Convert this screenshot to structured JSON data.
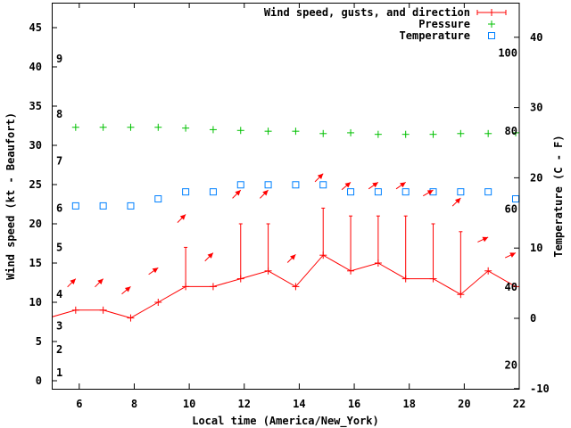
{
  "chart_data": {
    "type": "line",
    "xlabel": "Local time (America/New_York)",
    "ylabel": "Wind speed (kt - Beaufort)",
    "y2label": "Temperature (C - F)",
    "xlim": [
      5,
      22
    ],
    "ylim": [
      -1,
      48
    ],
    "y2lim": [
      -10,
      45
    ],
    "x_ticks": [
      6,
      8,
      10,
      12,
      14,
      16,
      18,
      20,
      22
    ],
    "y_ticks": [
      0,
      5,
      10,
      15,
      20,
      25,
      30,
      35,
      40,
      45
    ],
    "y2_ticks": [
      -10,
      0,
      10,
      20,
      30,
      40
    ],
    "beaufort_labels": [
      {
        "label": "1",
        "kt": 1
      },
      {
        "label": "2",
        "kt": 4
      },
      {
        "label": "3",
        "kt": 7
      },
      {
        "label": "4",
        "kt": 11
      },
      {
        "label": "5",
        "kt": 17
      },
      {
        "label": "6",
        "kt": 22
      },
      {
        "label": "7",
        "kt": 28
      },
      {
        "label": "8",
        "kt": 34
      },
      {
        "label": "9",
        "kt": 41
      }
    ],
    "fahrenheit_labels": [
      20,
      40,
      60,
      80,
      100
    ],
    "legend": {
      "position": "top-right",
      "entries": [
        "Wind speed, gusts, and direction",
        "Pressure",
        "Temperature"
      ]
    },
    "colors": {
      "wind": "#ff0000",
      "pressure": "#00c000",
      "temperature": "#0080ff"
    },
    "x": [
      4.87,
      5.87,
      6.87,
      7.87,
      8.87,
      9.87,
      10.87,
      11.87,
      12.87,
      13.87,
      14.87,
      15.87,
      16.87,
      17.87,
      18.87,
      19.87,
      20.87,
      21.87
    ],
    "series": [
      {
        "name": "Wind speed",
        "values": [
          8,
          9,
          9,
          8,
          10,
          12,
          12,
          13,
          14,
          12,
          16,
          14,
          15,
          13,
          13,
          11,
          14,
          12
        ]
      },
      {
        "name": "Gusts",
        "values": [
          null,
          null,
          null,
          null,
          null,
          17,
          null,
          20,
          20,
          null,
          22,
          21,
          21,
          21,
          20,
          19,
          null,
          null
        ]
      },
      {
        "name": "Direction arrow level (kt)",
        "values": [
          null,
          13,
          13,
          12,
          14.4,
          21.2,
          16.3,
          24.3,
          24.3,
          16.1,
          26.4,
          25.3,
          25.3,
          25.3,
          24.3,
          23.3,
          18.3,
          16.3
        ]
      },
      {
        "name": "Direction (deg from)",
        "values": [
          null,
          225,
          225,
          230,
          235,
          225,
          225,
          225,
          225,
          225,
          225,
          230,
          235,
          235,
          240,
          225,
          245,
          245
        ]
      },
      {
        "name": "Pressure (plotted on kt axis)",
        "values": [
          null,
          32.3,
          32.3,
          32.3,
          32.3,
          32.2,
          32.0,
          31.9,
          31.8,
          31.8,
          31.5,
          31.6,
          31.4,
          31.4,
          31.4,
          31.5,
          31.5,
          31.6
        ]
      },
      {
        "name": "Temperature (C)",
        "values": [
          null,
          16,
          16,
          16,
          17,
          18,
          18,
          19,
          19,
          19,
          19,
          18,
          18,
          18,
          18,
          18,
          18,
          17
        ]
      }
    ]
  }
}
